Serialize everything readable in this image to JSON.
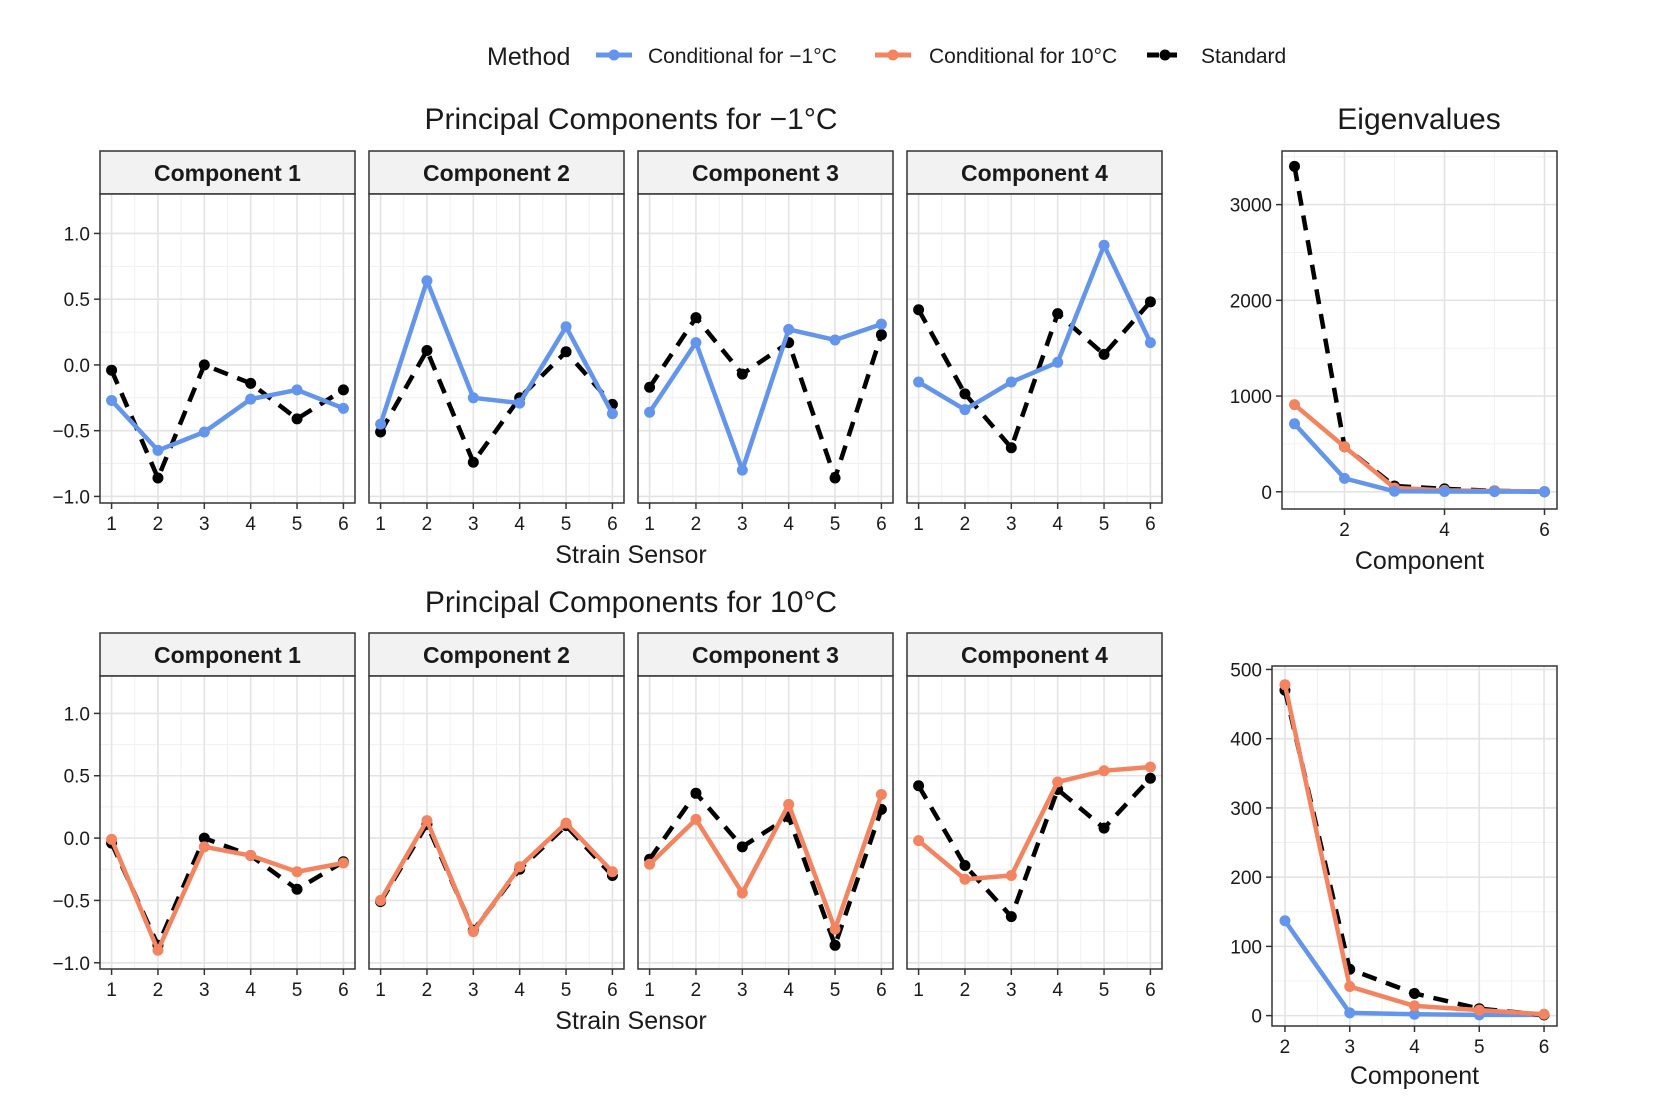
{
  "legend": {
    "title": "Method",
    "items": [
      {
        "label": "Conditional for −1°C",
        "color": "#6495ED",
        "dashed": false
      },
      {
        "label": "Conditional for 10°C",
        "color": "#F4845F",
        "dashed": false
      },
      {
        "label": "Standard",
        "color": "#000000",
        "dashed": true
      }
    ]
  },
  "chart_data": [
    {
      "type": "line",
      "title": "Principal Components for −1°C",
      "xlabel": "Strain Sensor",
      "ylabel": "",
      "facets": [
        "Component 1",
        "Component 2",
        "Component 3",
        "Component 4"
      ],
      "x": [
        1,
        2,
        3,
        4,
        5,
        6
      ],
      "x_ticks": [
        "1",
        "2",
        "3",
        "4",
        "5",
        "6"
      ],
      "ylim": [
        -1.05,
        1.3
      ],
      "y_ticks": [
        -1.0,
        -0.5,
        0.0,
        0.5,
        1.0
      ],
      "y_tick_labels": [
        "−1.0",
        "−0.5",
        "0.0",
        "0.5",
        "1.0"
      ],
      "series": [
        {
          "name": "Standard",
          "color": "#000000",
          "dashed": true,
          "facet_values": [
            [
              -0.04,
              -0.86,
              0.0,
              -0.14,
              -0.41,
              -0.19
            ],
            [
              -0.51,
              0.11,
              -0.74,
              -0.25,
              0.1,
              -0.3
            ],
            [
              -0.17,
              0.36,
              -0.07,
              0.17,
              -0.86,
              0.23
            ],
            [
              0.42,
              -0.22,
              -0.63,
              0.39,
              0.08,
              0.48
            ]
          ]
        },
        {
          "name": "Conditional for −1°C",
          "color": "#6495ED",
          "dashed": false,
          "facet_values": [
            [
              -0.27,
              -0.65,
              -0.51,
              -0.26,
              -0.19,
              -0.33
            ],
            [
              -0.45,
              0.64,
              -0.25,
              -0.29,
              0.29,
              -0.37
            ],
            [
              -0.36,
              0.17,
              -0.8,
              0.27,
              0.19,
              0.31
            ],
            [
              -0.13,
              -0.34,
              -0.13,
              0.02,
              0.91,
              0.17
            ]
          ]
        }
      ]
    },
    {
      "type": "line",
      "title": "Principal Components for 10°C",
      "xlabel": "Strain Sensor",
      "ylabel": "",
      "facets": [
        "Component 1",
        "Component 2",
        "Component 3",
        "Component 4"
      ],
      "x": [
        1,
        2,
        3,
        4,
        5,
        6
      ],
      "x_ticks": [
        "1",
        "2",
        "3",
        "4",
        "5",
        "6"
      ],
      "ylim": [
        -1.05,
        1.3
      ],
      "y_ticks": [
        -1.0,
        -0.5,
        0.0,
        0.5,
        1.0
      ],
      "y_tick_labels": [
        "−1.0",
        "−0.5",
        "0.0",
        "0.5",
        "1.0"
      ],
      "series": [
        {
          "name": "Standard",
          "color": "#000000",
          "dashed": true,
          "facet_values": [
            [
              -0.04,
              -0.86,
              0.0,
              -0.14,
              -0.41,
              -0.19
            ],
            [
              -0.51,
              0.11,
              -0.74,
              -0.25,
              0.1,
              -0.3
            ],
            [
              -0.17,
              0.36,
              -0.07,
              0.17,
              -0.86,
              0.23
            ],
            [
              0.42,
              -0.22,
              -0.63,
              0.39,
              0.08,
              0.48
            ]
          ]
        },
        {
          "name": "Conditional for 10°C",
          "color": "#F4845F",
          "dashed": false,
          "facet_values": [
            [
              -0.01,
              -0.9,
              -0.07,
              -0.14,
              -0.27,
              -0.2
            ],
            [
              -0.5,
              0.14,
              -0.75,
              -0.23,
              0.12,
              -0.27
            ],
            [
              -0.21,
              0.15,
              -0.44,
              0.27,
              -0.73,
              0.35
            ],
            [
              -0.02,
              -0.33,
              -0.3,
              0.45,
              0.54,
              0.57
            ]
          ]
        }
      ]
    },
    {
      "type": "line",
      "title": "Eigenvalues",
      "xlabel": "Component",
      "ylabel": "",
      "x": [
        1,
        2,
        3,
        4,
        5,
        6
      ],
      "x_ticks": [
        "2",
        "4",
        "6"
      ],
      "xlim": [
        0.75,
        6.25
      ],
      "ylim": [
        -180,
        3560
      ],
      "y_ticks": [
        0,
        1000,
        2000,
        3000
      ],
      "y_tick_labels": [
        "0",
        "1000",
        "2000",
        "3000"
      ],
      "series": [
        {
          "name": "Standard",
          "color": "#000000",
          "dashed": true,
          "values": [
            3400,
            470,
            60,
            30,
            10,
            0
          ]
        },
        {
          "name": "Conditional for 10°C",
          "color": "#F4845F",
          "dashed": false,
          "values": [
            910,
            470,
            40,
            15,
            8,
            3
          ]
        },
        {
          "name": "Conditional for −1°C",
          "color": "#6495ED",
          "dashed": false,
          "values": [
            710,
            140,
            5,
            3,
            2,
            1
          ]
        }
      ]
    },
    {
      "type": "line",
      "title": "",
      "xlabel": "Component",
      "ylabel": "",
      "x": [
        2,
        3,
        4,
        5,
        6
      ],
      "x_ticks": [
        "2",
        "3",
        "4",
        "5",
        "6"
      ],
      "xlim": [
        1.8,
        6.2
      ],
      "ylim": [
        -15,
        505
      ],
      "y_ticks": [
        0,
        100,
        200,
        300,
        400,
        500
      ],
      "y_tick_labels": [
        "0",
        "100",
        "200",
        "300",
        "400",
        "500"
      ],
      "series": [
        {
          "name": "Conditional for −1°C",
          "color": "#6495ED",
          "dashed": false,
          "values": [
            137,
            4,
            2,
            1,
            1
          ]
        },
        {
          "name": "Standard",
          "color": "#000000",
          "dashed": true,
          "values": [
            470,
            67,
            32,
            10,
            1
          ]
        },
        {
          "name": "Conditional for 10°C",
          "color": "#F4845F",
          "dashed": false,
          "values": [
            478,
            42,
            14,
            8,
            2
          ]
        }
      ]
    }
  ]
}
